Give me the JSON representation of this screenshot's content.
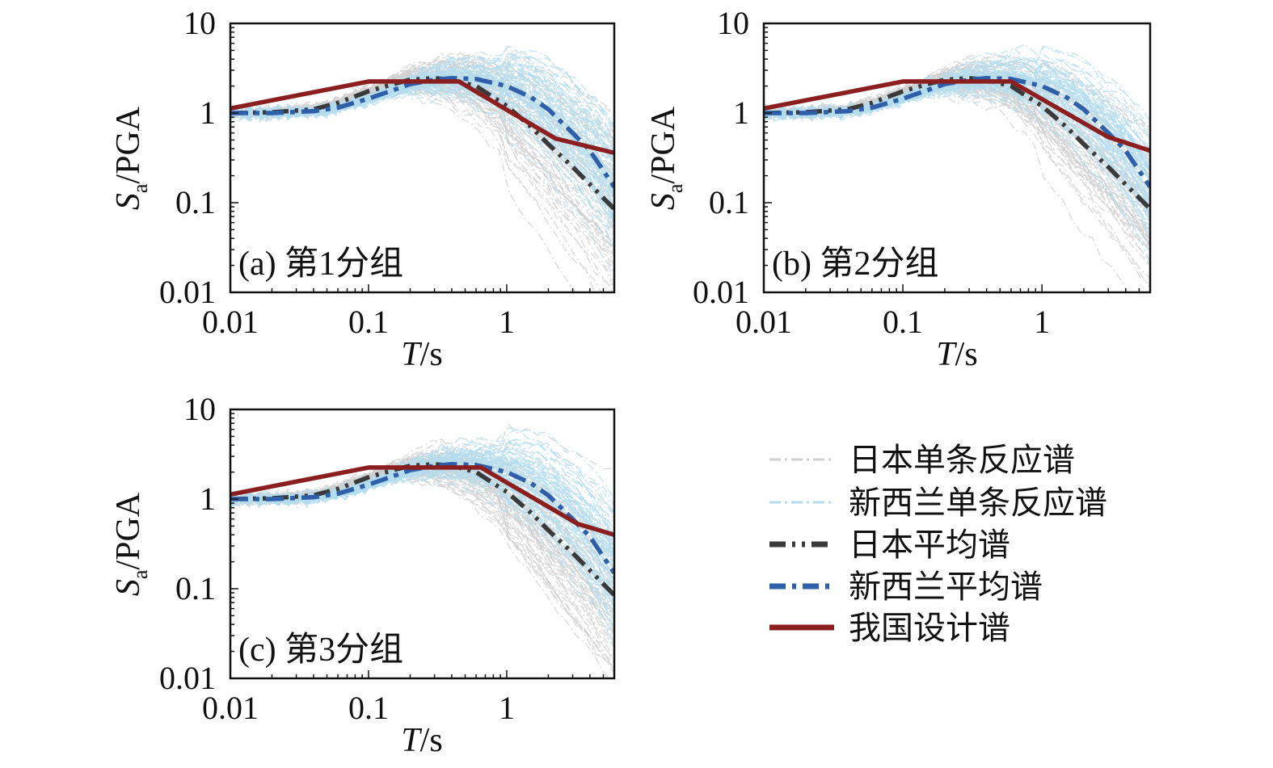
{
  "chart_data": [
    {
      "type": "line",
      "panel_label": "(a) 第1分组",
      "xscale": "log",
      "yscale": "log",
      "xlim": [
        0.01,
        6
      ],
      "ylim": [
        0.01,
        10
      ],
      "xlabel": "T/s",
      "ylabel": "Sa/PGA",
      "xticklabels": [
        "0.01",
        "0.1",
        "1"
      ],
      "yticklabels": [
        "0.01",
        "0.1",
        "1",
        "10"
      ],
      "series": [
        {
          "name": "日本平均谱",
          "color": "#3a3a3a",
          "style": "dash-dot-dot",
          "x": [
            0.01,
            0.02,
            0.04,
            0.06,
            0.1,
            0.15,
            0.2,
            0.3,
            0.4,
            0.6,
            1.0,
            1.5,
            2.0,
            3.0,
            4.0,
            6.0
          ],
          "y": [
            1.0,
            1.02,
            1.1,
            1.3,
            1.75,
            2.1,
            2.35,
            2.45,
            2.35,
            2.0,
            1.2,
            0.7,
            0.45,
            0.25,
            0.16,
            0.085
          ]
        },
        {
          "name": "新西兰平均谱",
          "color": "#2f5fa8",
          "style": "dash-dot",
          "x": [
            0.01,
            0.02,
            0.04,
            0.06,
            0.1,
            0.15,
            0.2,
            0.3,
            0.4,
            0.6,
            1.0,
            1.5,
            2.0,
            3.0,
            4.0,
            6.0
          ],
          "y": [
            1.0,
            1.0,
            1.05,
            1.15,
            1.45,
            1.8,
            2.1,
            2.35,
            2.45,
            2.4,
            2.0,
            1.5,
            1.1,
            0.6,
            0.38,
            0.15
          ]
        },
        {
          "name": "我国设计谱",
          "color": "#8b1f1f",
          "style": "solid",
          "x": [
            0.01,
            0.1,
            0.45,
            2.25,
            6.0
          ],
          "y": [
            1.125,
            2.25,
            2.25,
            0.52,
            0.36
          ]
        }
      ]
    },
    {
      "type": "line",
      "panel_label": "(b) 第2分组",
      "xscale": "log",
      "yscale": "log",
      "xlim": [
        0.01,
        6
      ],
      "ylim": [
        0.01,
        10
      ],
      "xlabel": "T/s",
      "ylabel": "Sa/PGA",
      "xticklabels": [
        "0.01",
        "0.1",
        "1"
      ],
      "yticklabels": [
        "0.01",
        "0.1",
        "1",
        "10"
      ],
      "series": [
        {
          "name": "日本平均谱",
          "color": "#3a3a3a",
          "style": "dash-dot-dot",
          "x": [
            0.01,
            0.02,
            0.04,
            0.06,
            0.1,
            0.15,
            0.2,
            0.3,
            0.4,
            0.6,
            1.0,
            1.5,
            2.0,
            3.0,
            4.0,
            6.0
          ],
          "y": [
            1.0,
            1.02,
            1.1,
            1.3,
            1.75,
            2.1,
            2.35,
            2.45,
            2.35,
            2.0,
            1.2,
            0.7,
            0.45,
            0.25,
            0.16,
            0.085
          ]
        },
        {
          "name": "新西兰平均谱",
          "color": "#2f5fa8",
          "style": "dash-dot",
          "x": [
            0.01,
            0.02,
            0.04,
            0.06,
            0.1,
            0.15,
            0.2,
            0.3,
            0.4,
            0.6,
            1.0,
            1.5,
            2.0,
            3.0,
            4.0,
            6.0
          ],
          "y": [
            1.0,
            1.0,
            1.05,
            1.15,
            1.45,
            1.8,
            2.1,
            2.35,
            2.45,
            2.4,
            2.0,
            1.5,
            1.1,
            0.6,
            0.38,
            0.15
          ]
        },
        {
          "name": "我国设计谱",
          "color": "#8b1f1f",
          "style": "solid",
          "x": [
            0.01,
            0.1,
            0.6,
            3.0,
            6.0
          ],
          "y": [
            1.125,
            2.25,
            2.25,
            0.54,
            0.38
          ]
        }
      ]
    },
    {
      "type": "line",
      "panel_label": "(c) 第3分组",
      "xscale": "log",
      "yscale": "log",
      "xlim": [
        0.01,
        6
      ],
      "ylim": [
        0.01,
        10
      ],
      "xlabel": "T/s",
      "ylabel": "Sa/PGA",
      "xticklabels": [
        "0.01",
        "0.1",
        "1"
      ],
      "yticklabels": [
        "0.01",
        "0.1",
        "1",
        "10"
      ],
      "series": [
        {
          "name": "日本平均谱",
          "color": "#3a3a3a",
          "style": "dash-dot-dot",
          "x": [
            0.01,
            0.02,
            0.04,
            0.06,
            0.1,
            0.15,
            0.2,
            0.3,
            0.4,
            0.6,
            1.0,
            1.5,
            2.0,
            3.0,
            4.0,
            6.0
          ],
          "y": [
            1.0,
            1.02,
            1.1,
            1.3,
            1.75,
            2.1,
            2.35,
            2.45,
            2.35,
            2.0,
            1.2,
            0.7,
            0.45,
            0.25,
            0.16,
            0.085
          ]
        },
        {
          "name": "新西兰平均谱",
          "color": "#2f5fa8",
          "style": "dash-dot",
          "x": [
            0.01,
            0.02,
            0.04,
            0.06,
            0.1,
            0.15,
            0.2,
            0.3,
            0.4,
            0.6,
            1.0,
            1.5,
            2.0,
            3.0,
            4.0,
            6.0
          ],
          "y": [
            1.0,
            1.0,
            1.05,
            1.15,
            1.45,
            1.8,
            2.1,
            2.35,
            2.45,
            2.4,
            2.0,
            1.5,
            1.1,
            0.6,
            0.38,
            0.15
          ]
        },
        {
          "name": "我国设计谱",
          "color": "#8b1f1f",
          "style": "solid",
          "x": [
            0.01,
            0.1,
            0.65,
            3.25,
            6.0
          ],
          "y": [
            1.125,
            2.25,
            2.25,
            0.53,
            0.4
          ]
        }
      ]
    }
  ],
  "legend": {
    "placement": "bottom-right",
    "items": [
      {
        "label": "日本单条反应谱",
        "color": "#d2d2d2",
        "style": "thin-dash-dot"
      },
      {
        "label": "新西兰单条反应谱",
        "color": "#b5dcec",
        "style": "thin-dash-dot"
      },
      {
        "label": "日本平均谱",
        "color": "#3a3a3a",
        "style": "dash-dot-dot"
      },
      {
        "label": "新西兰平均谱",
        "color": "#2f5fa8",
        "style": "dash-dot"
      },
      {
        "label": "我国设计谱",
        "color": "#8b1f1f",
        "style": "solid"
      }
    ]
  }
}
